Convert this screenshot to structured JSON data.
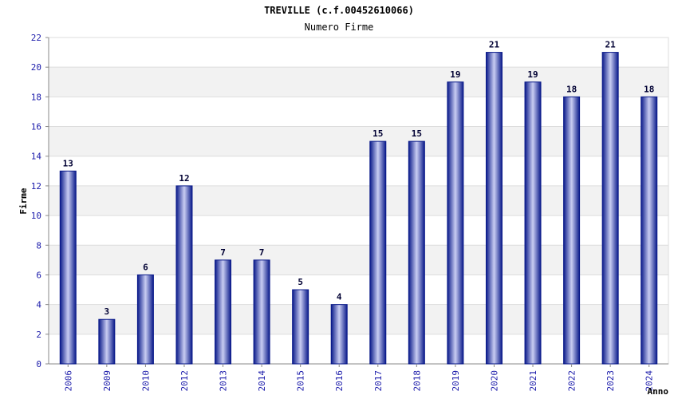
{
  "chart_data": {
    "type": "bar",
    "title": "TREVILLE (c.f.00452610066)",
    "subtitle": "Numero Firme",
    "xlabel": "Anno",
    "ylabel": "Firme",
    "categories": [
      "2006",
      "2009",
      "2010",
      "2012",
      "2013",
      "2014",
      "2015",
      "2016",
      "2017",
      "2018",
      "2019",
      "2020",
      "2021",
      "2022",
      "2023",
      "2024"
    ],
    "values": [
      13,
      3,
      6,
      12,
      7,
      7,
      5,
      4,
      15,
      15,
      19,
      21,
      19,
      18,
      21,
      18
    ],
    "ylim": [
      0,
      22
    ],
    "yticks": [
      0,
      2,
      4,
      6,
      8,
      10,
      12,
      14,
      16,
      18,
      20,
      22
    ],
    "grid": true,
    "colors": {
      "bar_dark": "#0a1a8a",
      "bar_light": "#c9cdf2",
      "tick_label": "#1a1aaa",
      "value_label": "#000033",
      "band": "#f2f2f2",
      "grid": "#dddddd",
      "axis": "#888888"
    }
  }
}
